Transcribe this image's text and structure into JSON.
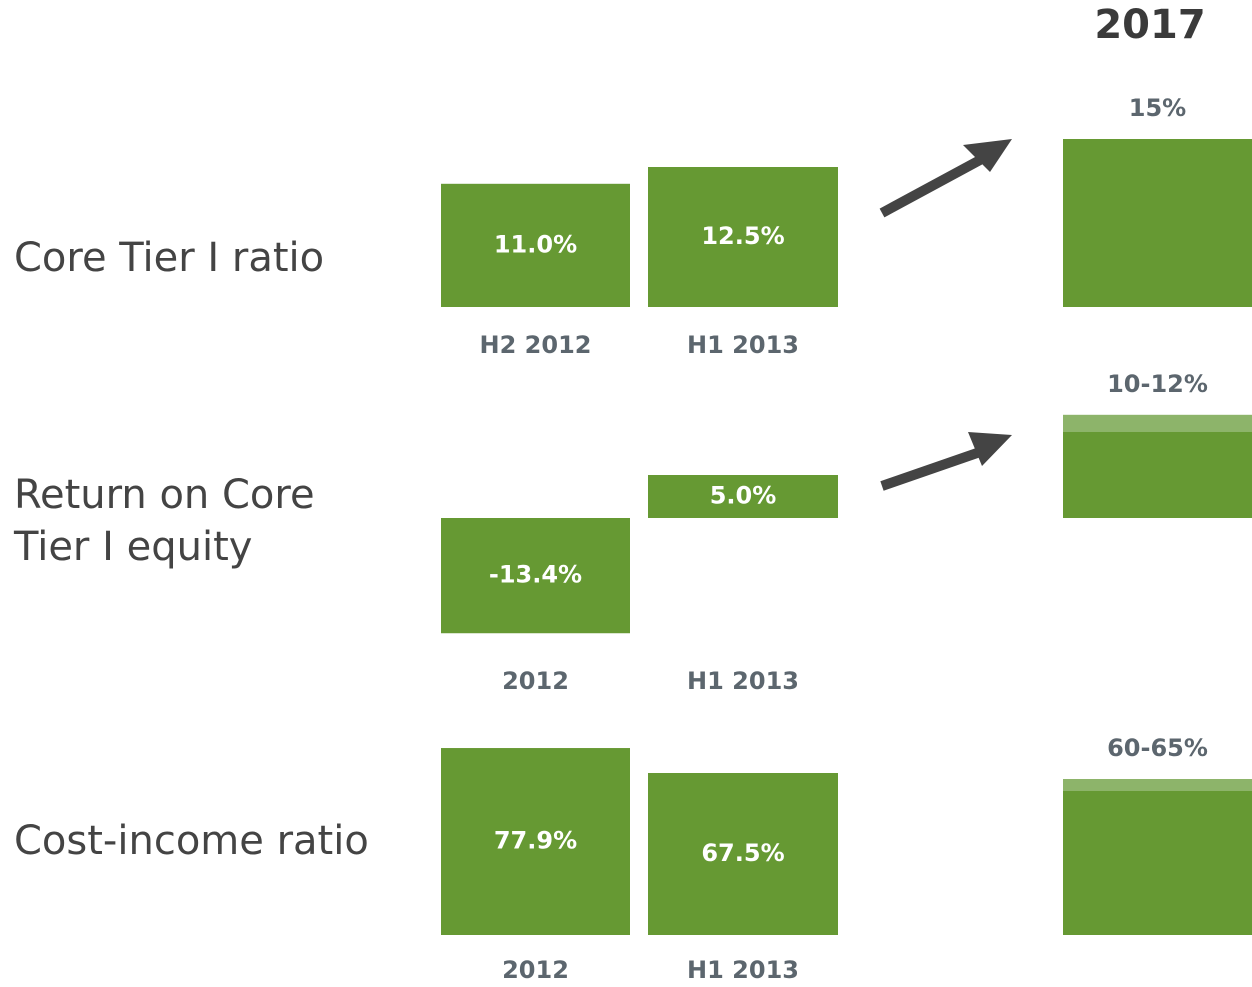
{
  "title": "2017",
  "chart_data": [
    {
      "type": "bar",
      "title": [
        "Core Tier I ratio"
      ],
      "categories": [
        "H2 2012",
        "H1 2013"
      ],
      "values": [
        11.0,
        12.5
      ],
      "value_labels": [
        "11.0%",
        "12.5%"
      ],
      "target": [
        15
      ],
      "target_label": "15%",
      "color": "#669933",
      "range_color": "#8db46a"
    },
    {
      "type": "bar",
      "title": [
        "Return on Core",
        "Tier I equity"
      ],
      "categories": [
        "2012",
        "H1 2013"
      ],
      "values": [
        -13.4,
        5.0
      ],
      "value_labels": [
        "-13.4%",
        "5.0%"
      ],
      "target": [
        10,
        12
      ],
      "target_label": "10-12%",
      "color": "#669933",
      "range_color": "#8db46a"
    },
    {
      "type": "bar",
      "title": [
        "Cost-income ratio"
      ],
      "categories": [
        "2012",
        "H1 2013"
      ],
      "values": [
        77.9,
        67.5
      ],
      "value_labels": [
        "77.9%",
        "67.5%"
      ],
      "target": [
        60,
        65
      ],
      "target_label": "60-65%",
      "color": "#669933",
      "range_color": "#8db46a"
    }
  ]
}
